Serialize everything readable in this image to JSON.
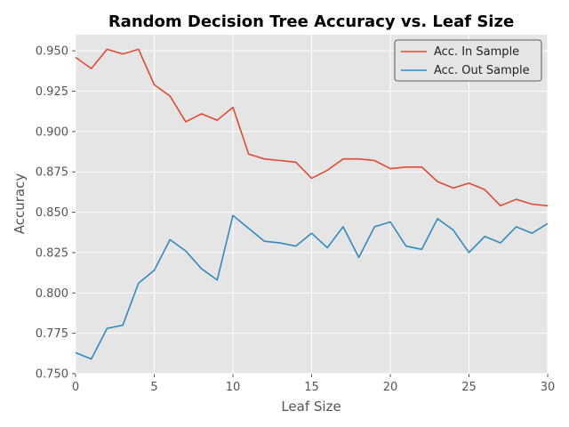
{
  "chart_data": {
    "type": "line",
    "title": "Random Decision Tree Accuracy vs. Leaf Size",
    "xlabel": "Leaf Size",
    "ylabel": "Accuracy",
    "xlim": [
      0,
      30
    ],
    "ylim": [
      0.75,
      0.96
    ],
    "xticks": [
      0,
      5,
      10,
      15,
      20,
      25,
      30
    ],
    "xtick_labels": [
      "0",
      "5",
      "10",
      "15",
      "20",
      "25",
      "30"
    ],
    "yticks": [
      0.75,
      0.775,
      0.8,
      0.825,
      0.85,
      0.875,
      0.9,
      0.925,
      0.95
    ],
    "ytick_labels": [
      "0.750",
      "0.775",
      "0.800",
      "0.825",
      "0.850",
      "0.875",
      "0.900",
      "0.925",
      "0.950"
    ],
    "grid": true,
    "legend_position": "top-right",
    "x": [
      0,
      1,
      2,
      3,
      4,
      5,
      6,
      7,
      8,
      9,
      10,
      11,
      12,
      13,
      14,
      15,
      16,
      17,
      18,
      19,
      20,
      21,
      22,
      23,
      24,
      25,
      26,
      27,
      28,
      29,
      30
    ],
    "series": [
      {
        "name": "Acc. In Sample",
        "color": "#E24A33",
        "values": [
          0.946,
          0.939,
          0.951,
          0.948,
          0.951,
          0.929,
          0.922,
          0.906,
          0.911,
          0.907,
          0.915,
          0.886,
          0.883,
          0.882,
          0.881,
          0.871,
          0.876,
          0.883,
          0.883,
          0.882,
          0.877,
          0.878,
          0.878,
          0.869,
          0.865,
          0.868,
          0.864,
          0.854,
          0.858,
          0.855,
          0.854
        ]
      },
      {
        "name": "Acc. Out Sample",
        "color": "#348ABD",
        "values": [
          0.763,
          0.759,
          0.778,
          0.78,
          0.806,
          0.814,
          0.833,
          0.826,
          0.815,
          0.808,
          0.848,
          0.84,
          0.832,
          0.831,
          0.829,
          0.837,
          0.828,
          0.841,
          0.822,
          0.841,
          0.844,
          0.829,
          0.827,
          0.846,
          0.839,
          0.825,
          0.835,
          0.831,
          0.841,
          0.837,
          0.843
        ]
      }
    ]
  }
}
